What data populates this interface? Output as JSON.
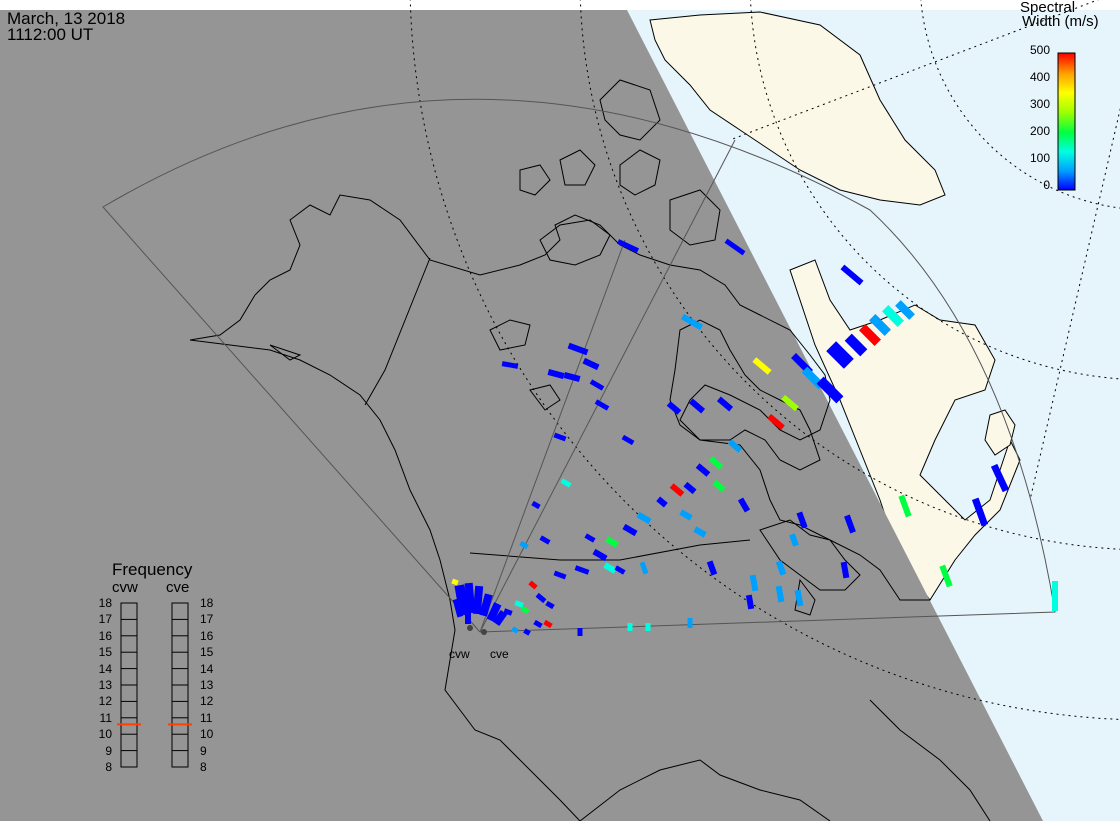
{
  "header": {
    "date": "March, 13 2018",
    "time": "1112:00 UT"
  },
  "colorbar": {
    "title_line1": "Spectral",
    "title_line2": "Width (m/s)",
    "ticks": [
      "500",
      "400",
      "300",
      "200",
      "100",
      "0"
    ],
    "range": [
      0,
      500
    ],
    "colors": [
      "#0000ff",
      "#00a0ff",
      "#00ffe0",
      "#00ff40",
      "#a0ff00",
      "#ffff00",
      "#ffa000",
      "#ff0000"
    ]
  },
  "frequency_panel": {
    "title": "Frequency",
    "radar_left": "cvw",
    "radar_right": "cve",
    "ticks": [
      "18",
      "17",
      "16",
      "15",
      "14",
      "13",
      "12",
      "11",
      "10",
      "9",
      "8"
    ],
    "cvw_value": 10.6,
    "cve_value": 10.6,
    "marker_color": "#ff4000"
  },
  "radars": [
    {
      "name": "cvw"
    },
    {
      "name": "cve"
    }
  ],
  "map": {
    "ocean_color": "#e6f4fc",
    "land_color": "#fbf8e8",
    "night_color": "#959595"
  }
}
